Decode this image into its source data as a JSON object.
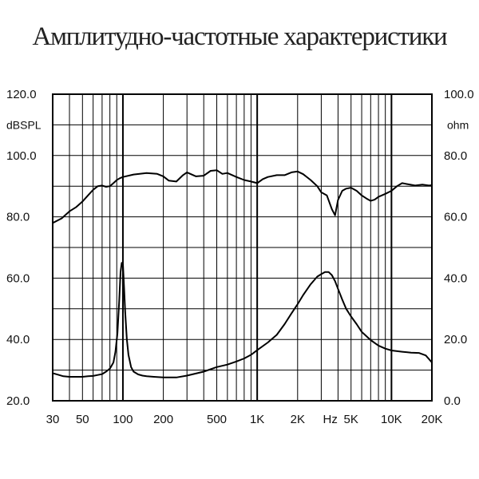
{
  "title": "Амплитудно-частотные характеристики",
  "chart_data": {
    "type": "line",
    "title": "Амплитудно-частотные характеристики",
    "x_scale": "log",
    "x_ticks": [
      {
        "label": "30",
        "value": 30
      },
      {
        "label": "50",
        "value": 50
      },
      {
        "label": "100",
        "value": 100
      },
      {
        "label": "200",
        "value": 200
      },
      {
        "label": "500",
        "value": 500
      },
      {
        "label": "1K",
        "value": 1000
      },
      {
        "label": "2K",
        "value": 2000
      },
      {
        "label": "Hz",
        "value": 3500
      },
      {
        "label": "5K",
        "value": 5000
      },
      {
        "label": "10K",
        "value": 10000
      },
      {
        "label": "20K",
        "value": 20000
      }
    ],
    "x_label": "Hz",
    "xlim": [
      30,
      20000
    ],
    "left_axis": {
      "unit": "dBSPL",
      "ylim": [
        20,
        120
      ],
      "ticks": [
        "120.0",
        "100.0",
        "80.0",
        "60.0",
        "40.0",
        "20.0"
      ],
      "tick_values": [
        120,
        100,
        80,
        60,
        40,
        20
      ]
    },
    "right_axis": {
      "unit": "ohm",
      "ylim": [
        0,
        100
      ],
      "ticks": [
        "100.0",
        "80.0",
        "60.0",
        "40.0",
        "20.0",
        "0.0"
      ],
      "tick_values": [
        100,
        80,
        60,
        40,
        20,
        0
      ]
    },
    "grid": true,
    "legend": "none",
    "series": [
      {
        "axis": "left",
        "color": "#000000",
        "x": [
          30,
          35,
          40,
          45,
          50,
          55,
          60,
          65,
          70,
          75,
          80,
          85,
          90,
          95,
          100,
          120,
          150,
          180,
          200,
          220,
          250,
          280,
          300,
          350,
          400,
          450,
          500,
          550,
          600,
          700,
          800,
          900,
          1000,
          1100,
          1200,
          1400,
          1600,
          1800,
          2000,
          2200,
          2500,
          2800,
          3000,
          3300,
          3600,
          3800,
          4000,
          4300,
          4600,
          5000,
          5500,
          6000,
          6500,
          7000,
          7500,
          8000,
          9000,
          10000,
          11000,
          12000,
          13000,
          15000,
          17000,
          19000,
          20000
        ],
        "y": [
          78.0,
          79.5,
          81.8,
          83.2,
          85.0,
          87.0,
          88.8,
          90.0,
          90.2,
          89.8,
          90.0,
          91.0,
          92.0,
          92.6,
          93.0,
          93.8,
          94.3,
          94.0,
          93.2,
          91.8,
          91.5,
          93.6,
          94.5,
          93.2,
          93.4,
          95.0,
          95.2,
          94.0,
          94.3,
          93.0,
          92.0,
          91.5,
          91.0,
          92.3,
          93.0,
          93.6,
          93.6,
          94.5,
          94.8,
          93.9,
          92.0,
          90.0,
          88.0,
          87.0,
          82.5,
          80.5,
          85.5,
          88.5,
          89.2,
          89.5,
          88.5,
          87.0,
          86.0,
          85.2,
          85.6,
          86.5,
          87.5,
          88.5,
          90.0,
          91.0,
          90.7,
          90.2,
          90.5,
          90.2,
          90.3
        ]
      },
      {
        "axis": "right",
        "color": "#000000",
        "x": [
          30,
          33,
          36,
          40,
          45,
          50,
          55,
          60,
          65,
          70,
          75,
          80,
          85,
          88,
          91,
          94,
          96,
          98,
          100,
          102,
          104,
          107,
          110,
          115,
          120,
          130,
          140,
          150,
          170,
          200,
          250,
          300,
          400,
          500,
          600,
          700,
          800,
          900,
          1000,
          1200,
          1400,
          1600,
          1800,
          2000,
          2200,
          2500,
          2800,
          3000,
          3200,
          3400,
          3600,
          3800,
          4000,
          4300,
          4600,
          5000,
          5500,
          6000,
          7000,
          8000,
          9000,
          10000,
          12000,
          14000,
          16000,
          18000,
          20000
        ],
        "y": [
          9.0,
          8.5,
          8.0,
          7.8,
          7.8,
          7.8,
          8.0,
          8.1,
          8.4,
          8.7,
          9.5,
          10.5,
          12.5,
          16.0,
          22.0,
          33.0,
          42.0,
          45.0,
          44.5,
          37.0,
          29.0,
          20.0,
          15.0,
          11.0,
          9.5,
          8.6,
          8.2,
          8.0,
          7.8,
          7.6,
          7.6,
          8.2,
          9.5,
          11.0,
          11.8,
          12.8,
          13.8,
          15.0,
          16.5,
          19.0,
          21.5,
          25.0,
          28.5,
          31.5,
          34.5,
          38.0,
          40.5,
          41.3,
          42.0,
          42.0,
          41.0,
          39.0,
          36.5,
          33.0,
          30.0,
          27.5,
          25.0,
          22.5,
          19.8,
          18.0,
          17.0,
          16.4,
          16.0,
          15.7,
          15.6,
          14.8,
          12.5
        ]
      }
    ]
  }
}
